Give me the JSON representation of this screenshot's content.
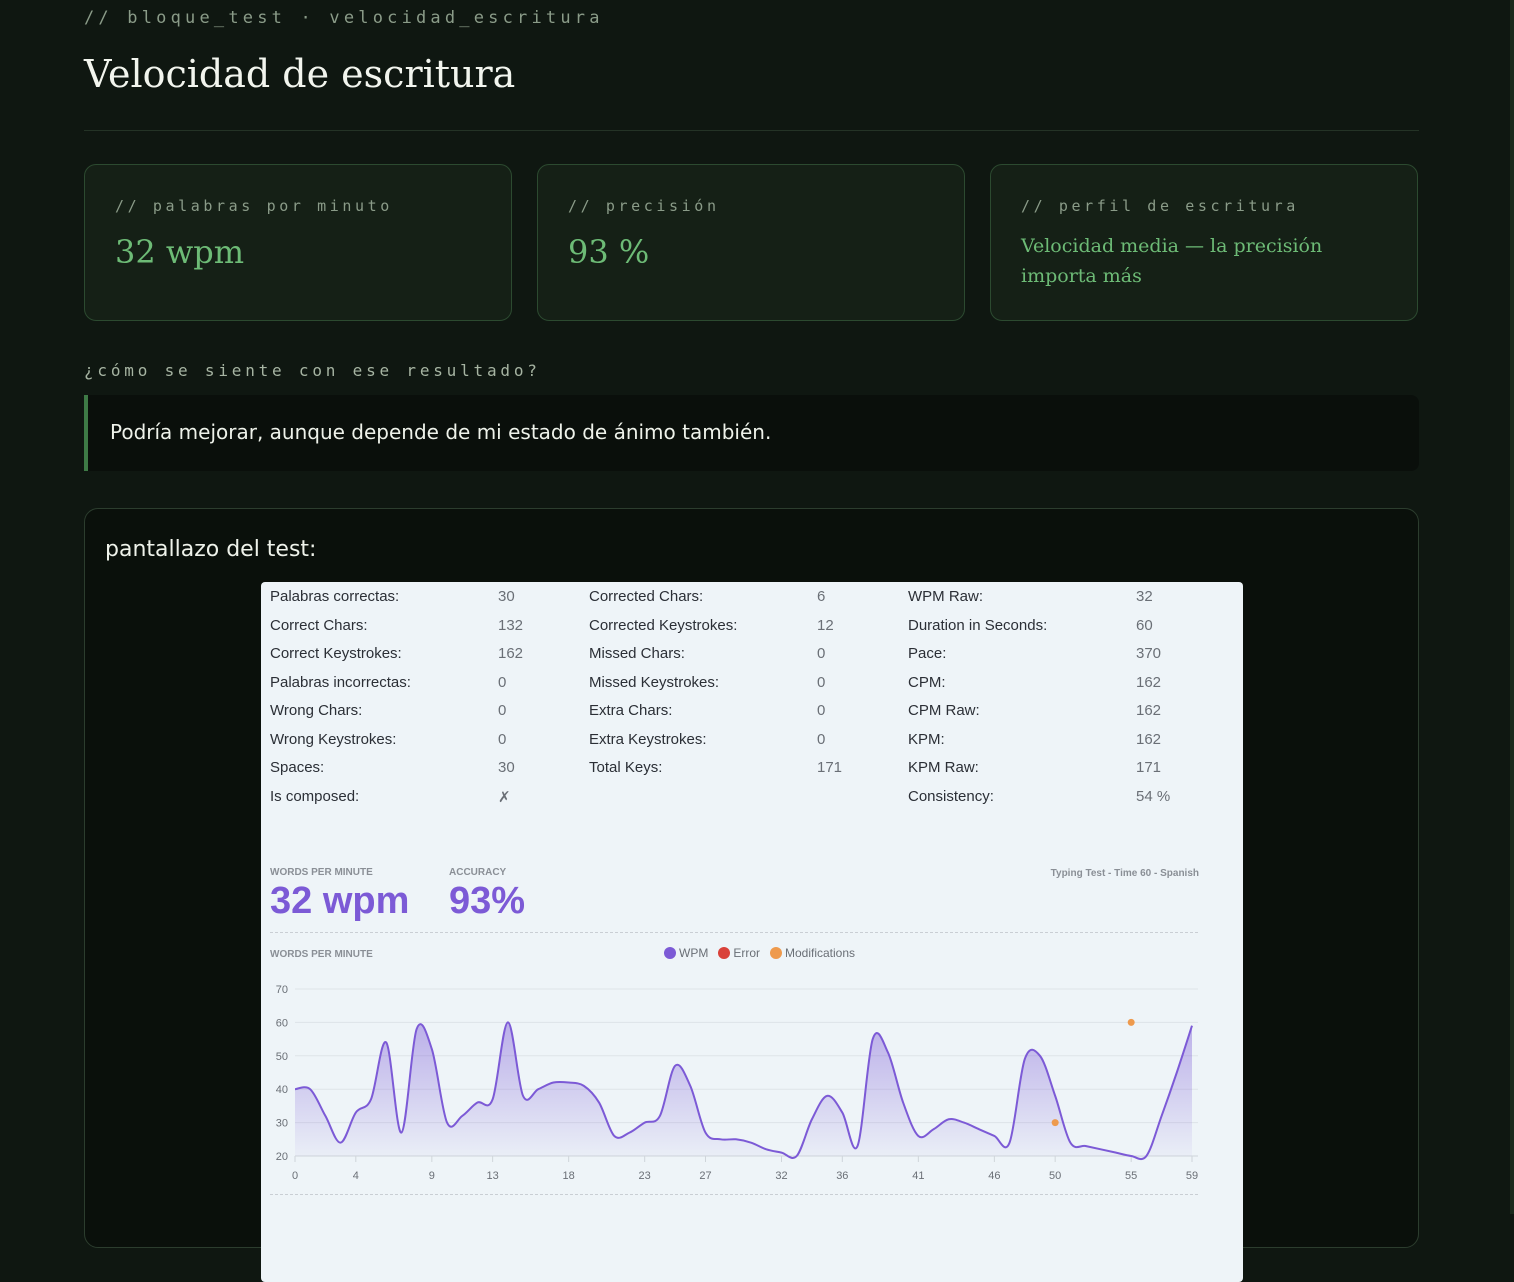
{
  "header": {
    "breadcrumb": "// bloque_test · velocidad_escritura",
    "title": "Velocidad de escritura"
  },
  "cards": [
    {
      "label": "// palabras por minuto",
      "value": "32 wpm"
    },
    {
      "label": "// precisión",
      "value": "93 %"
    },
    {
      "label": "// perfil de escritura",
      "value": "Velocidad media — la precisión importa más"
    }
  ],
  "question": {
    "label": "¿cómo se siente con ese resultado?",
    "answer": "Podría mejorar, aunque depende de mi estado de ánimo también."
  },
  "screenshot": {
    "label": "pantallazo del test:",
    "stats": {
      "col1": [
        {
          "k": "Palabras correctas:",
          "v": "30"
        },
        {
          "k": "Correct Chars:",
          "v": "132"
        },
        {
          "k": "Correct Keystrokes:",
          "v": "162"
        },
        {
          "k": "Palabras incorrectas:",
          "v": "0"
        },
        {
          "k": "Wrong Chars:",
          "v": "0"
        },
        {
          "k": "Wrong Keystrokes:",
          "v": "0"
        },
        {
          "k": "Spaces:",
          "v": "30"
        },
        {
          "k": "Is composed:",
          "v": "✗"
        }
      ],
      "col2": [
        {
          "k": "Corrected Chars:",
          "v": "6"
        },
        {
          "k": "Corrected Keystrokes:",
          "v": "12"
        },
        {
          "k": "Missed Chars:",
          "v": "0"
        },
        {
          "k": "Missed Keystrokes:",
          "v": "0"
        },
        {
          "k": "Extra Chars:",
          "v": "0"
        },
        {
          "k": "Extra Keystrokes:",
          "v": "0"
        },
        {
          "k": "Total Keys:",
          "v": "171"
        }
      ],
      "col3": [
        {
          "k": "WPM Raw:",
          "v": "32"
        },
        {
          "k": "Duration in Seconds:",
          "v": "60"
        },
        {
          "k": "Pace:",
          "v": "370"
        },
        {
          "k": "CPM:",
          "v": "162"
        },
        {
          "k": "CPM Raw:",
          "v": "162"
        },
        {
          "k": "KPM:",
          "v": "162"
        },
        {
          "k": "KPM Raw:",
          "v": "171"
        },
        {
          "k": "Consistency:",
          "v": "54 %"
        }
      ]
    },
    "summary": {
      "wpm_label": "WORDS PER MINUTE",
      "wpm_value": "32 wpm",
      "acc_label": "ACCURACY",
      "acc_value": "93%",
      "test_info": "Typing Test - Time 60 - Spanish"
    },
    "colors": {
      "wpm": "#7c5ad6",
      "error": "#d9413a",
      "modifications": "#ee9a4d"
    }
  },
  "chart_data": {
    "type": "area",
    "title": "WORDS PER MINUTE",
    "legend": [
      "WPM",
      "Error",
      "Modifications"
    ],
    "legend_placement": "top-center",
    "ylim": [
      20,
      70
    ],
    "yticks": [
      20,
      30,
      40,
      50,
      60,
      70
    ],
    "xticks": [
      0,
      4,
      9,
      13,
      18,
      23,
      27,
      32,
      36,
      41,
      46,
      50,
      55,
      59
    ],
    "grid": true,
    "series": [
      {
        "name": "WPM",
        "x": [
          0,
          1,
          2,
          3,
          4,
          5,
          6,
          7,
          8,
          9,
          10,
          11,
          12,
          13,
          14,
          15,
          16,
          17,
          18,
          19,
          20,
          21,
          22,
          23,
          24,
          25,
          26,
          27,
          28,
          29,
          30,
          31,
          32,
          33,
          34,
          35,
          36,
          37,
          38,
          39,
          40,
          41,
          42,
          43,
          44,
          45,
          46,
          47,
          48,
          49,
          50,
          51,
          52,
          53,
          54,
          55,
          56,
          57,
          58,
          59
        ],
        "y": [
          40,
          40,
          32,
          24,
          33,
          37,
          54,
          27,
          58,
          52,
          30,
          32,
          36,
          37,
          60,
          38,
          40,
          42,
          42,
          41,
          36,
          26,
          27,
          30,
          32,
          47,
          41,
          27,
          25,
          25,
          24,
          22,
          21,
          20,
          31,
          38,
          33,
          23,
          55,
          51,
          36,
          26,
          28,
          31,
          30,
          28,
          26,
          24,
          49,
          50,
          38,
          24,
          23,
          22,
          21,
          20,
          20,
          32,
          45,
          59
        ]
      },
      {
        "name": "Modifications",
        "points": [
          [
            50,
            30
          ],
          [
            55,
            60
          ]
        ]
      }
    ]
  }
}
